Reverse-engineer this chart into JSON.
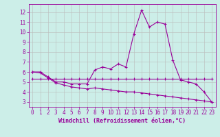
{
  "xlabel": "Windchill (Refroidissement éolien,°C)",
  "background_color": "#cceee8",
  "grid_color": "#bbbbbb",
  "line_color": "#990099",
  "x_hours": [
    0,
    1,
    2,
    3,
    4,
    5,
    6,
    7,
    8,
    9,
    10,
    11,
    12,
    13,
    14,
    15,
    16,
    17,
    18,
    19,
    20,
    21,
    22,
    23
  ],
  "line1": [
    6.0,
    6.0,
    5.5,
    5.0,
    5.0,
    4.8,
    4.8,
    4.8,
    6.2,
    6.5,
    6.3,
    6.8,
    6.5,
    9.8,
    12.2,
    10.5,
    11.0,
    10.8,
    7.2,
    5.2,
    5.0,
    4.8,
    4.0,
    3.0
  ],
  "line2": [
    6.0,
    5.9,
    5.4,
    4.9,
    4.7,
    4.5,
    4.4,
    4.3,
    4.4,
    4.3,
    4.2,
    4.1,
    4.0,
    4.0,
    3.9,
    3.8,
    3.7,
    3.6,
    3.5,
    3.4,
    3.3,
    3.2,
    3.1,
    3.0
  ],
  "line3": [
    5.3,
    5.3,
    5.3,
    5.3,
    5.3,
    5.3,
    5.3,
    5.3,
    5.3,
    5.3,
    5.3,
    5.3,
    5.3,
    5.3,
    5.3,
    5.3,
    5.3,
    5.3,
    5.3,
    5.3,
    5.3,
    5.3,
    5.3,
    5.3
  ],
  "ylim": [
    2.5,
    12.8
  ],
  "yticks": [
    3,
    4,
    5,
    6,
    7,
    8,
    9,
    10,
    11,
    12
  ],
  "xlim": [
    -0.5,
    23.5
  ],
  "xticks": [
    0,
    1,
    2,
    3,
    4,
    5,
    6,
    7,
    8,
    9,
    10,
    11,
    12,
    13,
    14,
    15,
    16,
    17,
    18,
    19,
    20,
    21,
    22,
    23
  ]
}
